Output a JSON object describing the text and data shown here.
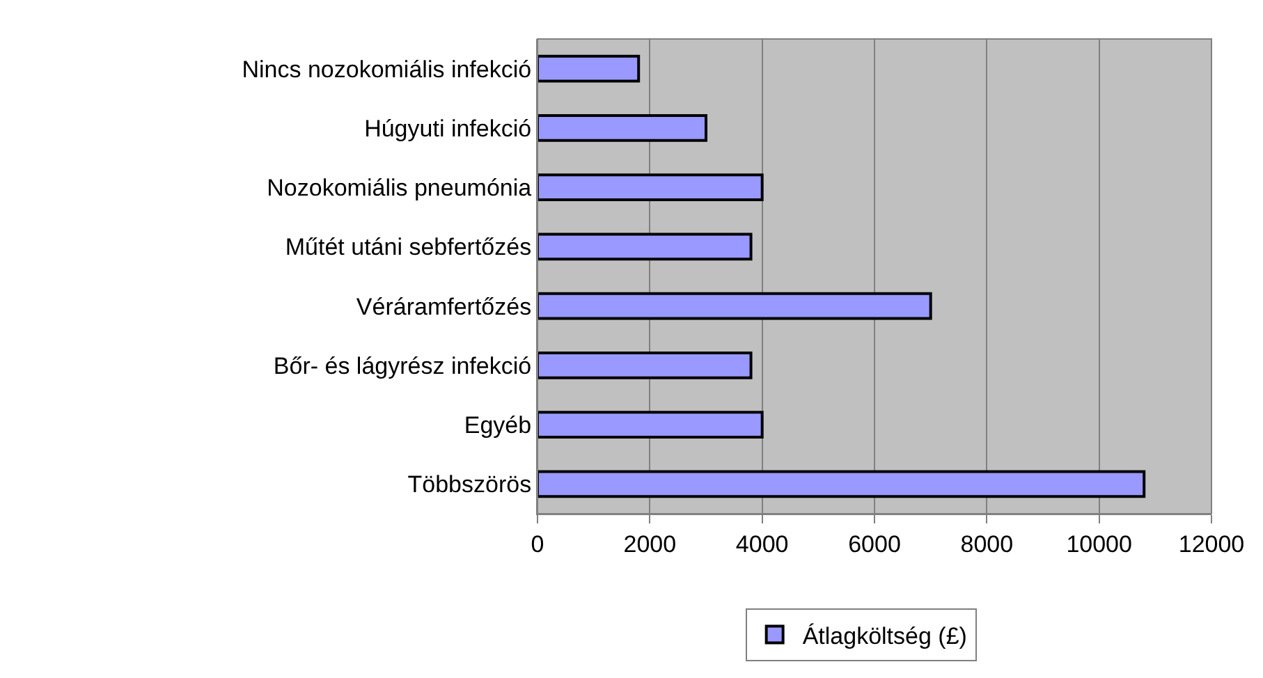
{
  "chart_data": {
    "type": "bar",
    "orientation": "horizontal",
    "categories": [
      "Nincs nozokomiális infekció",
      "Húgyuti infekció",
      "Nozokomiális pneumónia",
      "Műtét utáni sebfertőzés",
      "Véráramfertőzés",
      "Bőr- és lágyrész infekció",
      "Egyéb",
      "Többszörös"
    ],
    "series": [
      {
        "name": "Átlagköltség (£)",
        "color": "#9999ff",
        "values": [
          1800,
          3000,
          4000,
          3800,
          7000,
          3800,
          4000,
          10800
        ]
      }
    ],
    "xlim": [
      0,
      12000
    ],
    "xticks": [
      0,
      2000,
      4000,
      6000,
      8000,
      10000,
      12000
    ],
    "grid": "x",
    "legend": "bottom"
  }
}
